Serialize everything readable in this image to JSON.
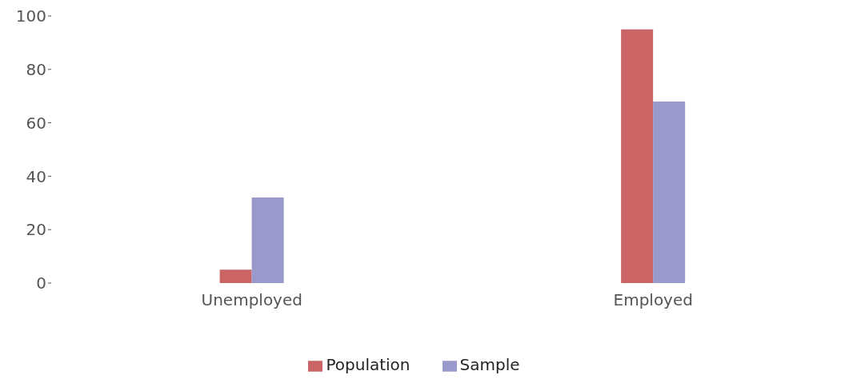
{
  "chart_data": {
    "type": "bar",
    "categories": [
      "Unemployed",
      "Employed"
    ],
    "series": [
      {
        "name": "Population",
        "color": "#cb6464",
        "values": [
          5,
          95
        ]
      },
      {
        "name": "Sample",
        "color": "#9999cb",
        "values": [
          32,
          68
        ]
      }
    ],
    "ylim": [
      0,
      100
    ],
    "yticks": [
      0,
      20,
      40,
      60,
      80,
      100
    ],
    "grid": false,
    "legend": "bottom"
  }
}
